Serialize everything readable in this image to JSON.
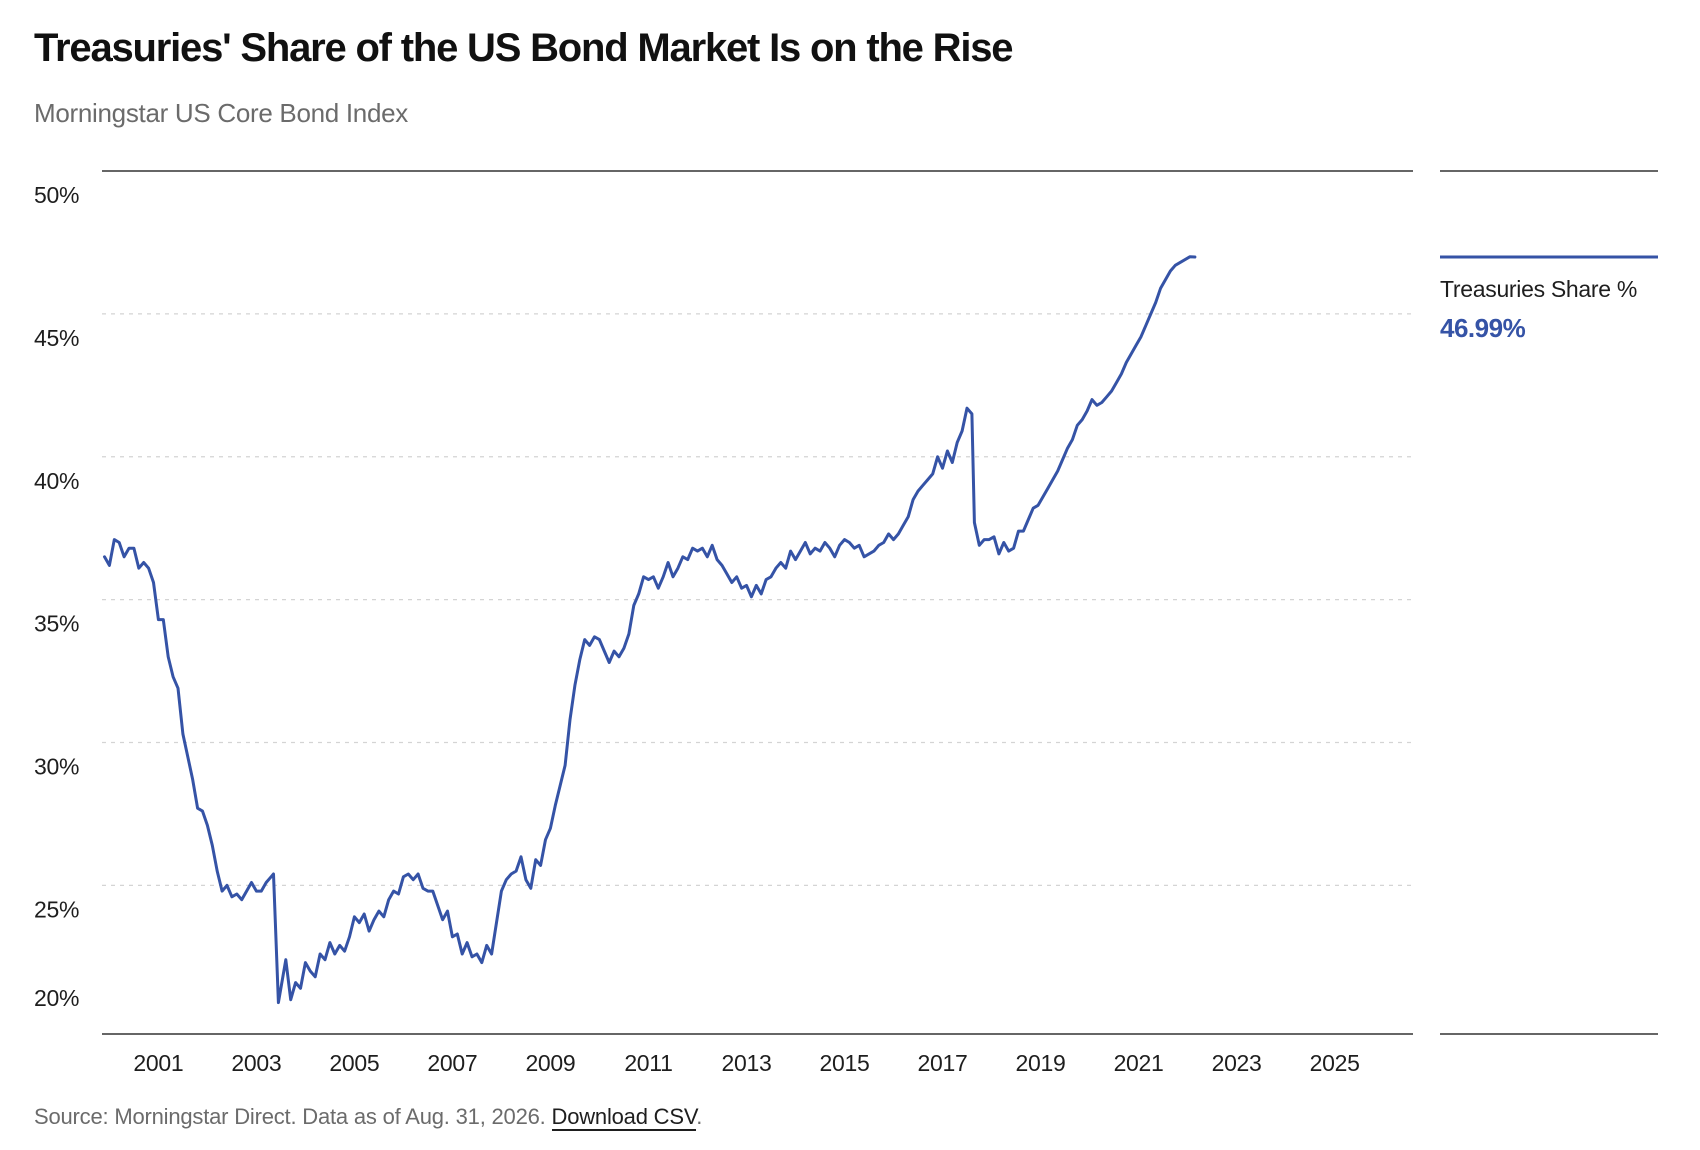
{
  "header": {
    "title": "Treasuries' Share of the US Bond Market Is on the Rise",
    "subtitle": "Morningstar US Core Bond Index"
  },
  "footer": {
    "source_text": "Source: Morningstar Direct. Data as of Aug. 31, 2026.",
    "download_link": "Download CSV",
    "trailing": "."
  },
  "legend": {
    "label": "Treasuries Share %",
    "value": "46.99%"
  },
  "colors": {
    "series": "#3553a6",
    "gridline": "#d4d4d4",
    "axis": "#333333"
  },
  "chart_data": {
    "type": "line",
    "title": "Treasuries' Share of the US Bond Market Is on the Rise",
    "subtitle": "Morningstar US Core Bond Index",
    "xlabel": "",
    "ylabel": "",
    "x_ticks": [
      "2001",
      "2003",
      "2005",
      "2007",
      "2009",
      "2011",
      "2013",
      "2015",
      "2017",
      "2019",
      "2021",
      "2023",
      "2025"
    ],
    "y_ticks": [
      "20%",
      "25%",
      "30%",
      "35%",
      "40%",
      "45%",
      "50%"
    ],
    "xlim": [
      1999.85,
      2026.6
    ],
    "ylim": [
      19.8,
      50
    ],
    "grid": "horizontal dashed",
    "legend_position": "right",
    "series": [
      {
        "name": "Treasuries Share %",
        "last_value_label": "46.99%",
        "points": [
          [
            1999.9,
            36.5
          ],
          [
            2000.0,
            36.2
          ],
          [
            2000.1,
            37.1
          ],
          [
            2000.2,
            37.0
          ],
          [
            2000.3,
            36.5
          ],
          [
            2000.4,
            36.8
          ],
          [
            2000.5,
            36.8
          ],
          [
            2000.6,
            36.1
          ],
          [
            2000.7,
            36.3
          ],
          [
            2000.8,
            36.1
          ],
          [
            2000.9,
            35.6
          ],
          [
            2001.0,
            34.3
          ],
          [
            2001.1,
            34.3
          ],
          [
            2001.2,
            33.0
          ],
          [
            2001.3,
            32.3
          ],
          [
            2001.4,
            31.9
          ],
          [
            2001.5,
            30.3
          ],
          [
            2001.6,
            29.5
          ],
          [
            2001.7,
            28.7
          ],
          [
            2001.8,
            27.7
          ],
          [
            2001.9,
            27.6
          ],
          [
            2002.0,
            27.1
          ],
          [
            2002.1,
            26.4
          ],
          [
            2002.2,
            25.5
          ],
          [
            2002.3,
            24.8
          ],
          [
            2002.4,
            25.0
          ],
          [
            2002.5,
            24.6
          ],
          [
            2002.6,
            24.7
          ],
          [
            2002.7,
            24.5
          ],
          [
            2002.8,
            24.8
          ],
          [
            2002.9,
            25.1
          ],
          [
            2003.0,
            24.8
          ],
          [
            2003.1,
            24.8
          ],
          [
            2003.2,
            25.1
          ],
          [
            2003.3,
            25.3
          ],
          [
            2003.35,
            25.4
          ],
          [
            2003.45,
            20.9
          ],
          [
            2003.6,
            22.4
          ],
          [
            2003.7,
            21.0
          ],
          [
            2003.8,
            21.6
          ],
          [
            2003.9,
            21.4
          ],
          [
            2004.0,
            22.3
          ],
          [
            2004.1,
            22.0
          ],
          [
            2004.2,
            21.8
          ],
          [
            2004.3,
            22.6
          ],
          [
            2004.4,
            22.4
          ],
          [
            2004.5,
            23.0
          ],
          [
            2004.6,
            22.6
          ],
          [
            2004.7,
            22.9
          ],
          [
            2004.8,
            22.7
          ],
          [
            2004.9,
            23.2
          ],
          [
            2005.0,
            23.9
          ],
          [
            2005.1,
            23.7
          ],
          [
            2005.2,
            24.0
          ],
          [
            2005.3,
            23.4
          ],
          [
            2005.4,
            23.8
          ],
          [
            2005.5,
            24.1
          ],
          [
            2005.6,
            23.9
          ],
          [
            2005.7,
            24.5
          ],
          [
            2005.8,
            24.8
          ],
          [
            2005.9,
            24.7
          ],
          [
            2006.0,
            25.3
          ],
          [
            2006.1,
            25.4
          ],
          [
            2006.2,
            25.2
          ],
          [
            2006.3,
            25.4
          ],
          [
            2006.4,
            24.9
          ],
          [
            2006.5,
            24.8
          ],
          [
            2006.6,
            24.8
          ],
          [
            2006.7,
            24.3
          ],
          [
            2006.8,
            23.8
          ],
          [
            2006.9,
            24.1
          ],
          [
            2007.0,
            23.2
          ],
          [
            2007.1,
            23.3
          ],
          [
            2007.2,
            22.6
          ],
          [
            2007.3,
            23.0
          ],
          [
            2007.4,
            22.5
          ],
          [
            2007.5,
            22.6
          ],
          [
            2007.6,
            22.3
          ],
          [
            2007.7,
            22.9
          ],
          [
            2007.8,
            22.6
          ],
          [
            2008.0,
            24.8
          ],
          [
            2008.1,
            25.2
          ],
          [
            2008.2,
            25.4
          ],
          [
            2008.3,
            25.5
          ],
          [
            2008.4,
            26.0
          ],
          [
            2008.5,
            25.2
          ],
          [
            2008.6,
            24.9
          ],
          [
            2008.7,
            25.9
          ],
          [
            2008.8,
            25.7
          ],
          [
            2008.9,
            26.6
          ],
          [
            2009.0,
            27.0
          ],
          [
            2009.1,
            27.8
          ],
          [
            2009.2,
            28.5
          ],
          [
            2009.3,
            29.2
          ],
          [
            2009.4,
            30.8
          ],
          [
            2009.5,
            32.0
          ],
          [
            2009.6,
            32.9
          ],
          [
            2009.7,
            33.6
          ],
          [
            2009.8,
            33.4
          ],
          [
            2009.9,
            33.7
          ],
          [
            2010.0,
            33.6
          ],
          [
            2010.1,
            33.2
          ],
          [
            2010.2,
            32.8
          ],
          [
            2010.3,
            33.2
          ],
          [
            2010.4,
            33.0
          ],
          [
            2010.5,
            33.3
          ],
          [
            2010.6,
            33.8
          ],
          [
            2010.7,
            34.8
          ],
          [
            2010.8,
            35.2
          ],
          [
            2010.9,
            35.8
          ],
          [
            2011.0,
            35.7
          ],
          [
            2011.1,
            35.8
          ],
          [
            2011.2,
            35.4
          ],
          [
            2011.3,
            35.8
          ],
          [
            2011.4,
            36.3
          ],
          [
            2011.5,
            35.8
          ],
          [
            2011.6,
            36.1
          ],
          [
            2011.7,
            36.5
          ],
          [
            2011.8,
            36.4
          ],
          [
            2011.9,
            36.8
          ],
          [
            2012.0,
            36.7
          ],
          [
            2012.1,
            36.8
          ],
          [
            2012.2,
            36.5
          ],
          [
            2012.3,
            36.9
          ],
          [
            2012.4,
            36.4
          ],
          [
            2012.5,
            36.2
          ],
          [
            2012.6,
            35.9
          ],
          [
            2012.7,
            35.6
          ],
          [
            2012.8,
            35.8
          ],
          [
            2012.9,
            35.4
          ],
          [
            2013.0,
            35.5
          ],
          [
            2013.1,
            35.1
          ],
          [
            2013.2,
            35.5
          ],
          [
            2013.3,
            35.2
          ],
          [
            2013.4,
            35.7
          ],
          [
            2013.5,
            35.8
          ],
          [
            2013.6,
            36.1
          ],
          [
            2013.7,
            36.3
          ],
          [
            2013.8,
            36.1
          ],
          [
            2013.9,
            36.7
          ],
          [
            2014.0,
            36.4
          ],
          [
            2014.1,
            36.7
          ],
          [
            2014.2,
            37.0
          ],
          [
            2014.3,
            36.6
          ],
          [
            2014.4,
            36.8
          ],
          [
            2014.5,
            36.7
          ],
          [
            2014.6,
            37.0
          ],
          [
            2014.7,
            36.8
          ],
          [
            2014.8,
            36.5
          ],
          [
            2014.9,
            36.9
          ],
          [
            2015.0,
            37.1
          ],
          [
            2015.1,
            37.0
          ],
          [
            2015.2,
            36.8
          ],
          [
            2015.3,
            36.9
          ],
          [
            2015.4,
            36.5
          ],
          [
            2015.5,
            36.6
          ],
          [
            2015.6,
            36.7
          ],
          [
            2015.7,
            36.9
          ],
          [
            2015.8,
            37.0
          ],
          [
            2015.9,
            37.3
          ],
          [
            2016.0,
            37.1
          ],
          [
            2016.1,
            37.3
          ],
          [
            2016.2,
            37.6
          ],
          [
            2016.3,
            37.9
          ],
          [
            2016.4,
            38.5
          ],
          [
            2016.5,
            38.8
          ],
          [
            2016.6,
            39.0
          ],
          [
            2016.7,
            39.2
          ],
          [
            2016.8,
            39.4
          ],
          [
            2016.9,
            40.0
          ],
          [
            2017.0,
            39.6
          ],
          [
            2017.1,
            40.2
          ],
          [
            2017.2,
            39.8
          ],
          [
            2017.3,
            40.5
          ],
          [
            2017.4,
            40.9
          ],
          [
            2017.5,
            41.7
          ],
          [
            2017.6,
            41.5
          ],
          [
            2017.65,
            37.7
          ],
          [
            2017.75,
            36.9
          ],
          [
            2017.85,
            37.1
          ],
          [
            2017.95,
            37.1
          ],
          [
            2018.05,
            37.2
          ],
          [
            2018.15,
            36.6
          ],
          [
            2018.25,
            37.0
          ],
          [
            2018.35,
            36.7
          ],
          [
            2018.45,
            36.8
          ],
          [
            2018.55,
            37.4
          ],
          [
            2018.65,
            37.4
          ],
          [
            2018.75,
            37.8
          ],
          [
            2018.85,
            38.2
          ],
          [
            2018.95,
            38.3
          ],
          [
            2019.05,
            38.6
          ],
          [
            2019.15,
            38.9
          ],
          [
            2019.25,
            39.2
          ],
          [
            2019.35,
            39.5
          ],
          [
            2019.45,
            39.9
          ],
          [
            2019.55,
            40.3
          ],
          [
            2019.65,
            40.6
          ],
          [
            2019.75,
            41.1
          ],
          [
            2019.85,
            41.3
          ],
          [
            2019.95,
            41.6
          ],
          [
            2020.05,
            42.0
          ],
          [
            2020.15,
            41.8
          ],
          [
            2020.25,
            41.9
          ],
          [
            2020.35,
            42.1
          ],
          [
            2020.45,
            42.3
          ],
          [
            2020.55,
            42.6
          ],
          [
            2020.65,
            42.9
          ],
          [
            2020.75,
            43.3
          ],
          [
            2020.85,
            43.6
          ],
          [
            2020.95,
            43.9
          ],
          [
            2021.05,
            44.2
          ],
          [
            2021.15,
            44.6
          ],
          [
            2021.25,
            45.0
          ],
          [
            2021.35,
            45.4
          ],
          [
            2021.45,
            45.9
          ],
          [
            2021.55,
            46.2
          ],
          [
            2021.65,
            46.5
          ],
          [
            2021.75,
            46.7
          ],
          [
            2021.85,
            46.8
          ],
          [
            2021.95,
            46.9
          ],
          [
            2022.05,
            47.0
          ],
          [
            2022.15,
            46.99
          ]
        ]
      }
    ]
  }
}
